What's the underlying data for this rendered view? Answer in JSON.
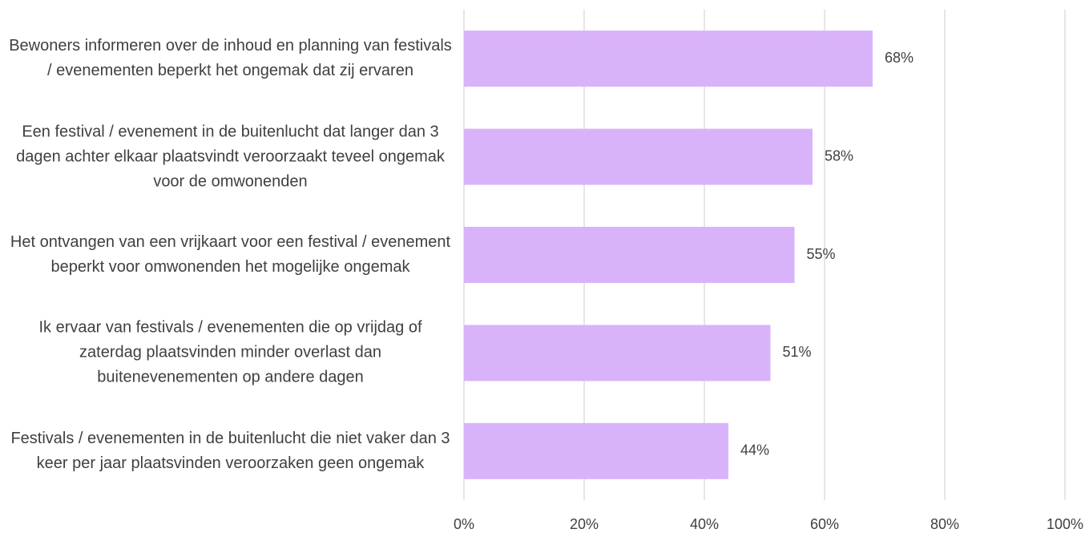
{
  "chart_data": {
    "type": "barh",
    "categories": [
      "Bewoners informeren over de inhoud en planning van festivals / evenementen beperkt het ongemak dat zij ervaren",
      "Een festival / evenement in de buitenlucht dat langer dan 3 dagen achter elkaar plaatsvindt veroorzaakt teveel ongemak voor de omwonenden",
      "Het ontvangen van een vrijkaart voor een festival / evenement beperkt voor omwonenden het mogelijke ongemak",
      "Ik ervaar van festivals / evenementen die op vrijdag of zaterdag plaatsvinden minder overlast dan buitenevenementen op andere dagen",
      "Festivals / evenementen in de buitenlucht die niet vaker dan 3 keer per jaar plaatsvinden veroorzaken geen ongemak"
    ],
    "values": [
      68,
      58,
      55,
      51,
      44
    ],
    "value_labels": [
      "68%",
      "58%",
      "55%",
      "51%",
      "44%"
    ],
    "color": "#d9b3fa",
    "xlim": [
      0,
      100
    ],
    "xticks": [
      {
        "value": 0,
        "label": "0%"
      },
      {
        "value": 20,
        "label": "20%"
      },
      {
        "value": 40,
        "label": "40%"
      },
      {
        "value": 60,
        "label": "60%"
      },
      {
        "value": 80,
        "label": "80%"
      },
      {
        "value": 100,
        "label": "100%"
      }
    ],
    "grid": true
  }
}
